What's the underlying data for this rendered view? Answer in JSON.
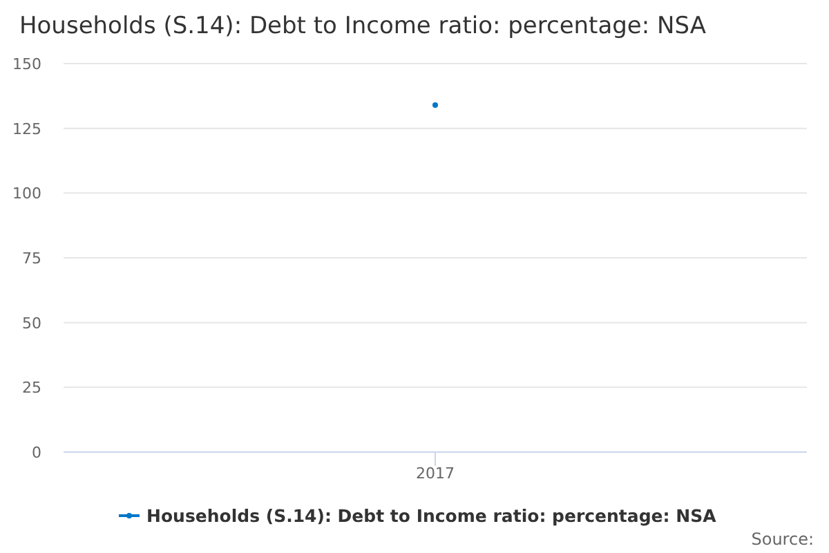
{
  "chart_data": {
    "type": "line",
    "title": "Households (S.14): Debt to Income ratio: percentage: NSA",
    "categories": [
      "2017"
    ],
    "series": [
      {
        "name": "Households (S.14): Debt to Income ratio: percentage: NSA",
        "color": "#0077c8",
        "values": [
          134
        ]
      }
    ],
    "ylim": [
      0,
      150
    ],
    "yticks": [
      0,
      25,
      50,
      75,
      100,
      125,
      150
    ],
    "grid": "y",
    "legend": "bottom",
    "marker": "circle",
    "annotations": [
      "Source:"
    ]
  }
}
